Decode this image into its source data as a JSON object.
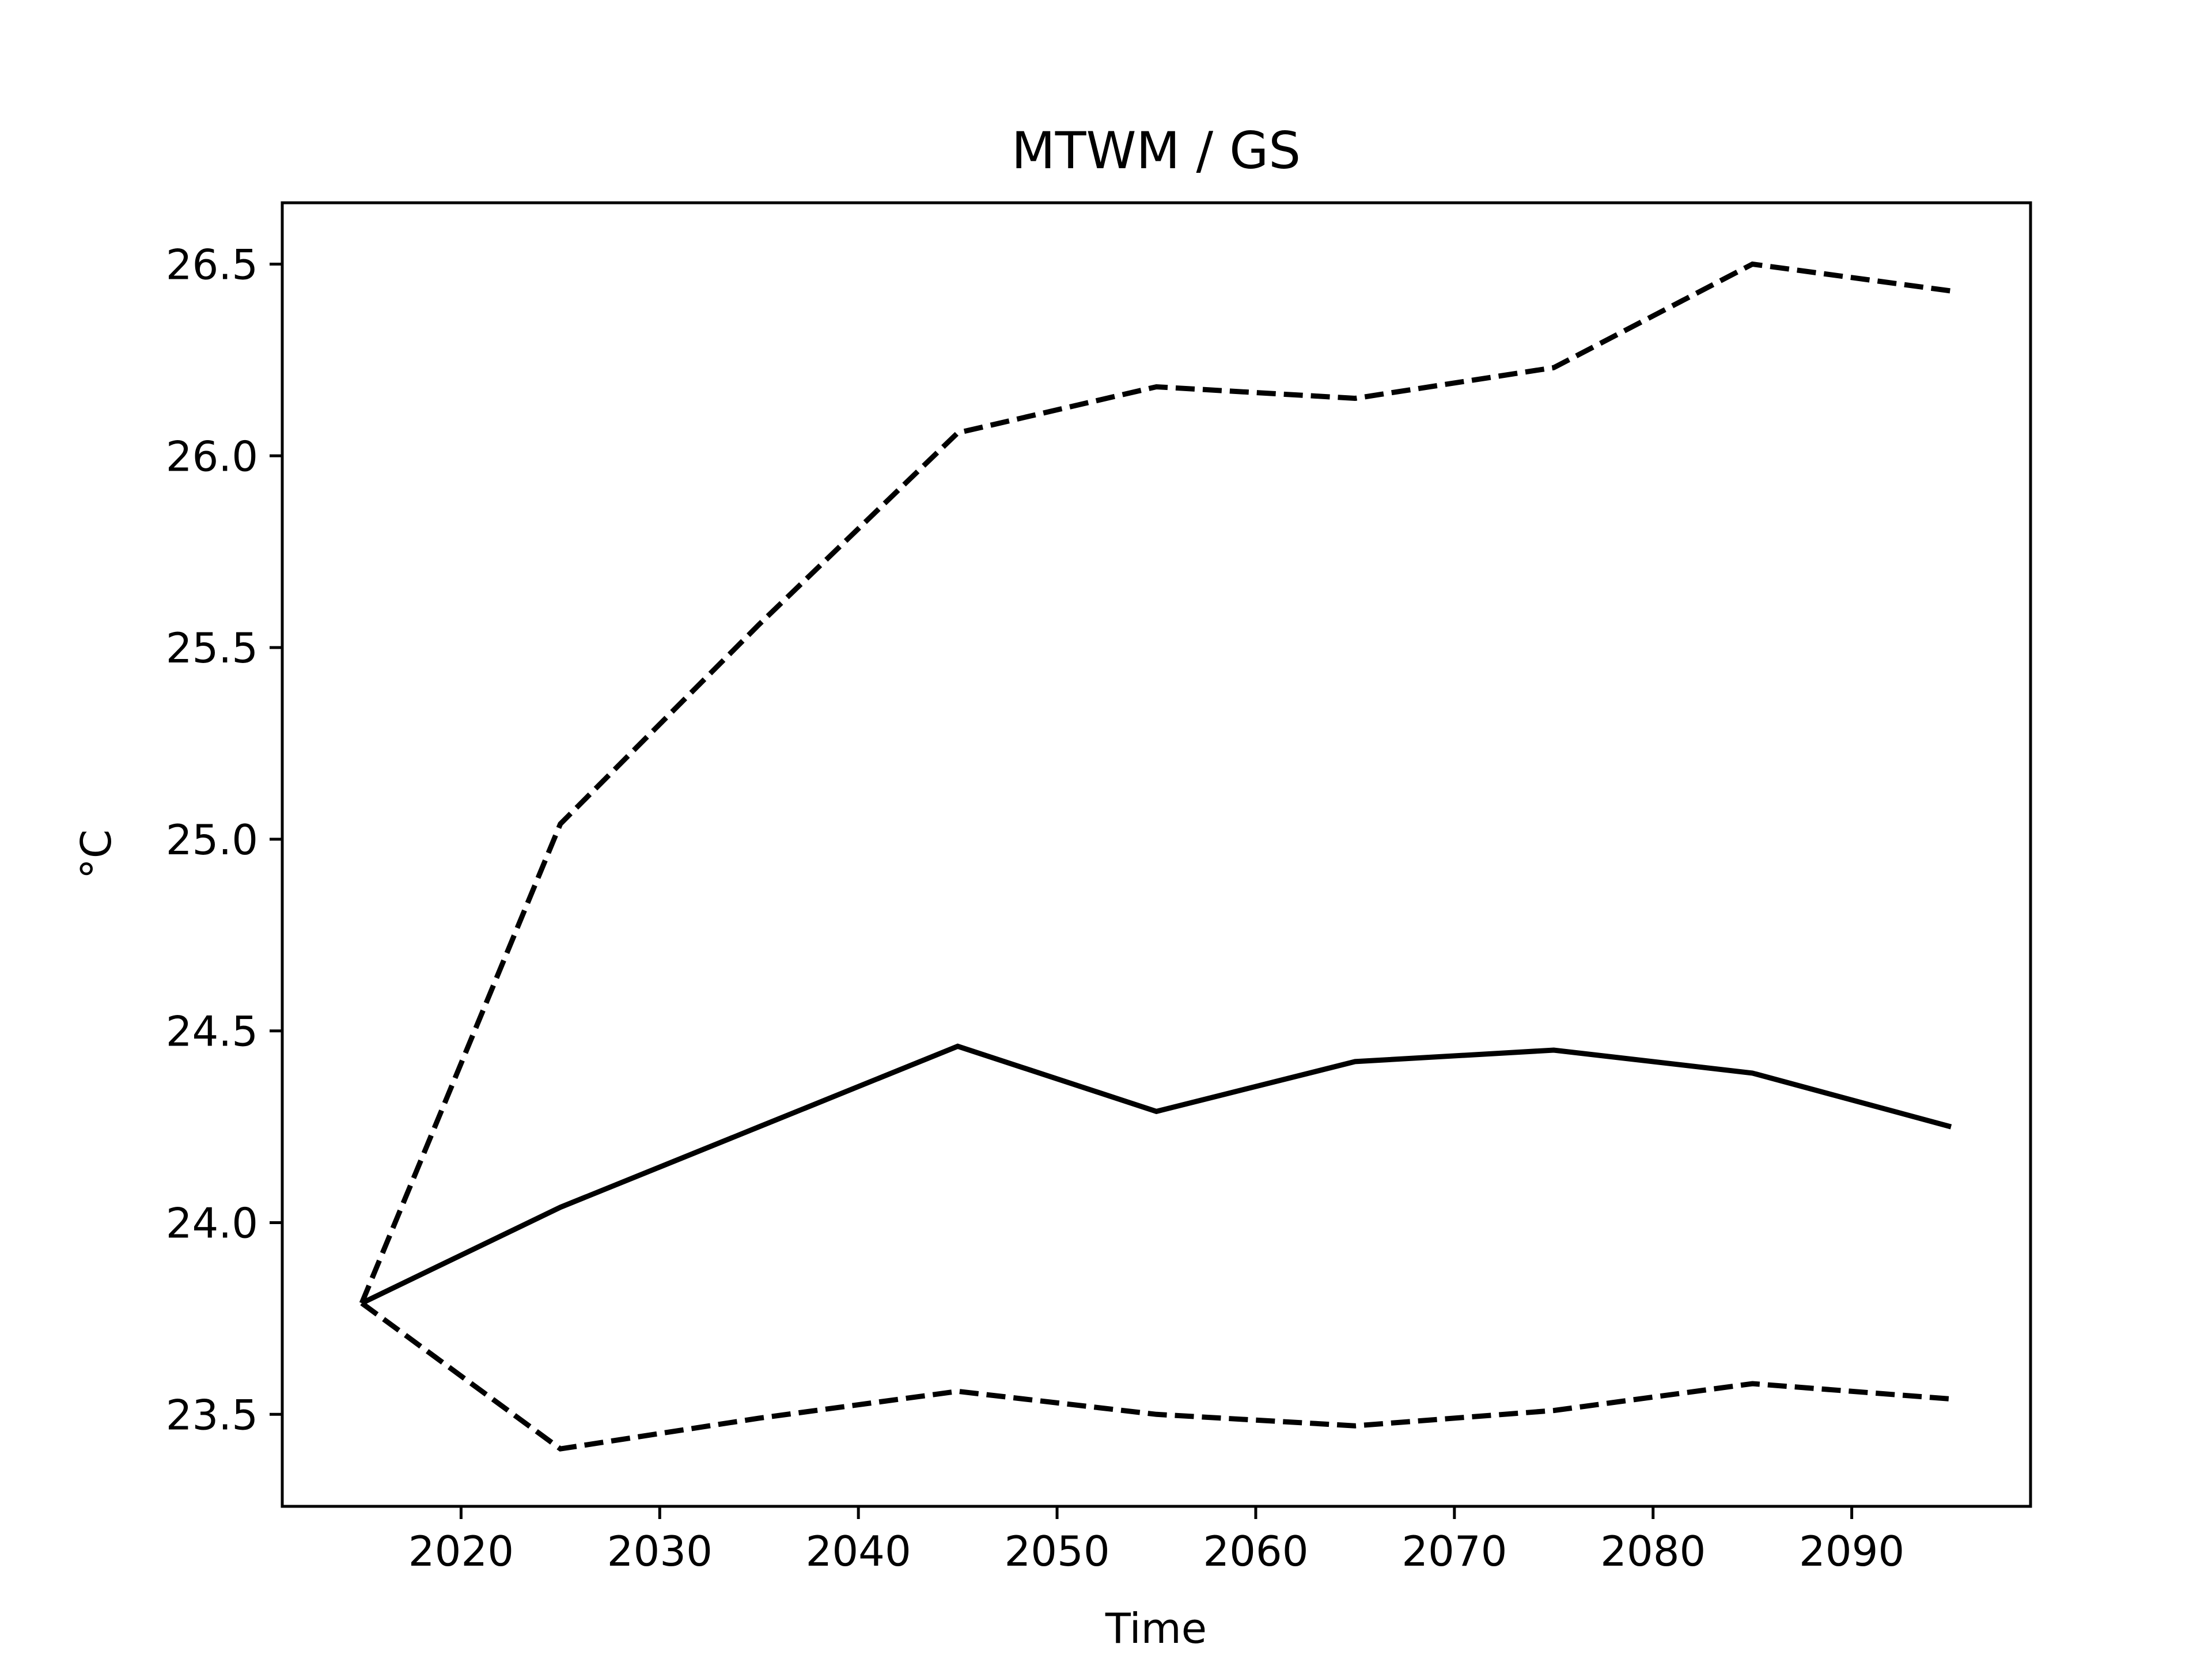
{
  "chart_data": {
    "type": "line",
    "title": "MTWM / GS",
    "xlabel": "Time",
    "ylabel": "°C",
    "xlim": [
      2011,
      2099
    ],
    "ylim": [
      23.26,
      26.66
    ],
    "xticks": [
      2020,
      2030,
      2040,
      2050,
      2060,
      2070,
      2080,
      2090
    ],
    "xtick_labels": [
      "2020",
      "2030",
      "2040",
      "2050",
      "2060",
      "2070",
      "2080",
      "2090"
    ],
    "yticks": [
      23.5,
      24.0,
      24.5,
      25.0,
      25.5,
      26.0,
      26.5
    ],
    "ytick_labels": [
      "23.5",
      "24.0",
      "24.5",
      "25.0",
      "25.5",
      "26.0",
      "26.5"
    ],
    "grid": false,
    "legend": "none",
    "x": [
      2015,
      2025,
      2035,
      2045,
      2055,
      2065,
      2075,
      2085,
      2095
    ],
    "series": [
      {
        "style": "dashed",
        "color": "#000000",
        "values": [
          23.79,
          25.04,
          25.56,
          26.06,
          26.18,
          26.15,
          26.23,
          26.5,
          26.43
        ]
      },
      {
        "style": "solid",
        "color": "#000000",
        "values": [
          23.79,
          24.04,
          24.25,
          24.46,
          24.29,
          24.42,
          24.45,
          24.39,
          24.25
        ]
      },
      {
        "style": "dashed",
        "color": "#000000",
        "values": [
          23.79,
          23.41,
          23.49,
          23.56,
          23.5,
          23.47,
          23.51,
          23.58,
          23.54
        ]
      }
    ]
  }
}
